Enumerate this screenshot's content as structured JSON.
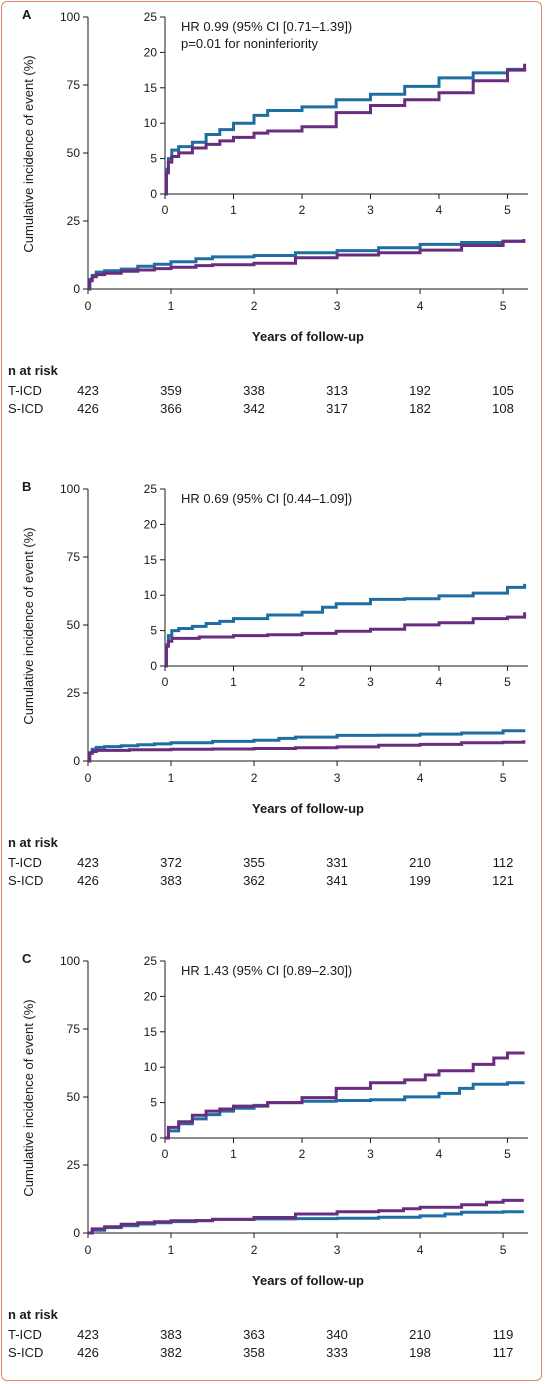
{
  "colors": {
    "tice": "#1f6ea3",
    "sicd": "#6a2c7e",
    "axis": "#1a1a1a",
    "frame": "#e8836a"
  },
  "chart_data": [
    {
      "panel": "A",
      "type": "line",
      "xlabel": "Years of follow-up",
      "ylabel": "Cumulative incidence of event (%)",
      "xlim": [
        0,
        5.3
      ],
      "ylim": [
        0,
        100
      ],
      "xticks": [
        0,
        1,
        2,
        3,
        4,
        5
      ],
      "yticks": [
        0,
        25,
        50,
        75,
        100
      ],
      "inset": {
        "xlim": [
          0,
          5.3
        ],
        "ylim": [
          0,
          25
        ],
        "yticks": [
          0,
          5,
          10,
          15,
          20,
          25
        ],
        "xticks": [
          0,
          1,
          2,
          3,
          4,
          5
        ]
      },
      "annotation": [
        "HR 0.99 (95% CI [0.71–1.39])",
        "p=0.01 for noninferiority"
      ],
      "series": [
        {
          "name": "T-ICD",
          "color": "#1f6ea3",
          "x": [
            0,
            0.02,
            0.05,
            0.1,
            0.2,
            0.4,
            0.6,
            0.8,
            1.0,
            1.3,
            1.5,
            2.0,
            2.5,
            3.0,
            3.5,
            4.0,
            4.5,
            5.0,
            5.25
          ],
          "y": [
            0,
            3.5,
            5.0,
            6.2,
            6.7,
            7.3,
            8.4,
            9.1,
            10.0,
            11.1,
            11.8,
            12.3,
            13.3,
            14.1,
            15.2,
            16.4,
            17.1,
            17.6,
            17.8
          ]
        },
        {
          "name": "S-ICD",
          "color": "#6a2c7e",
          "x": [
            0,
            0.02,
            0.05,
            0.1,
            0.2,
            0.4,
            0.6,
            0.8,
            1.0,
            1.3,
            1.5,
            2.0,
            2.5,
            3.0,
            3.5,
            4.0,
            4.5,
            5.0,
            5.25
          ],
          "y": [
            0,
            3.0,
            4.5,
            5.3,
            5.8,
            6.5,
            7.0,
            7.5,
            8.0,
            8.6,
            8.9,
            9.5,
            11.5,
            12.5,
            13.3,
            14.3,
            16.0,
            17.5,
            18.4
          ]
        }
      ],
      "risk": {
        "title": "n at risk",
        "rows": [
          {
            "label": "T-ICD",
            "values": [
              "423",
              "359",
              "338",
              "313",
              "192",
              "105"
            ]
          },
          {
            "label": "S-ICD",
            "values": [
              "426",
              "366",
              "342",
              "317",
              "182",
              "108"
            ]
          }
        ]
      }
    },
    {
      "panel": "B",
      "type": "line",
      "xlabel": "Years of follow-up",
      "ylabel": "Cumulative incidence of event (%)",
      "xlim": [
        0,
        5.3
      ],
      "ylim": [
        0,
        100
      ],
      "xticks": [
        0,
        1,
        2,
        3,
        4,
        5
      ],
      "yticks": [
        0,
        25,
        50,
        75,
        100
      ],
      "inset": {
        "xlim": [
          0,
          5.3
        ],
        "ylim": [
          0,
          25
        ],
        "yticks": [
          0,
          5,
          10,
          15,
          20,
          25
        ],
        "xticks": [
          0,
          1,
          2,
          3,
          4,
          5
        ]
      },
      "annotation": [
        "HR 0.69 (95% CI [0.44–1.09])"
      ],
      "series": [
        {
          "name": "T-ICD",
          "color": "#1f6ea3",
          "x": [
            0,
            0.02,
            0.05,
            0.1,
            0.2,
            0.4,
            0.6,
            0.8,
            1.0,
            1.5,
            2.0,
            2.3,
            2.5,
            3.0,
            3.5,
            4.0,
            4.5,
            5.0,
            5.25
          ],
          "y": [
            0,
            3.0,
            4.3,
            5.0,
            5.3,
            5.6,
            6.0,
            6.3,
            6.7,
            7.2,
            7.6,
            8.3,
            8.8,
            9.4,
            9.5,
            9.9,
            10.3,
            11.1,
            11.6
          ]
        },
        {
          "name": "S-ICD",
          "color": "#6a2c7e",
          "x": [
            0,
            0.02,
            0.05,
            0.1,
            0.5,
            1.0,
            1.5,
            2.0,
            2.5,
            3.0,
            3.5,
            4.0,
            4.5,
            5.0,
            5.25
          ],
          "y": [
            0,
            2.8,
            3.5,
            3.9,
            4.1,
            4.3,
            4.4,
            4.6,
            4.9,
            5.2,
            5.8,
            6.1,
            6.7,
            6.9,
            7.6
          ]
        }
      ],
      "risk": {
        "title": "n at risk",
        "rows": [
          {
            "label": "T-ICD",
            "values": [
              "423",
              "372",
              "355",
              "331",
              "210",
              "112"
            ]
          },
          {
            "label": "S-ICD",
            "values": [
              "426",
              "383",
              "362",
              "341",
              "199",
              "121"
            ]
          }
        ]
      }
    },
    {
      "panel": "C",
      "type": "line",
      "xlabel": "Years of follow-up",
      "ylabel": "Cumulative incidence of event (%)",
      "xlim": [
        0,
        5.3
      ],
      "ylim": [
        0,
        100
      ],
      "xticks": [
        0,
        1,
        2,
        3,
        4,
        5
      ],
      "yticks": [
        0,
        25,
        50,
        75,
        100
      ],
      "inset": {
        "xlim": [
          0,
          5.3
        ],
        "ylim": [
          0,
          25
        ],
        "yticks": [
          0,
          5,
          10,
          15,
          20,
          25
        ],
        "xticks": [
          0,
          1,
          2,
          3,
          4,
          5
        ]
      },
      "annotation": [
        "HR 1.43 (95% CI [0.89–2.30])"
      ],
      "series": [
        {
          "name": "T-ICD",
          "color": "#1f6ea3",
          "x": [
            0,
            0.05,
            0.2,
            0.4,
            0.6,
            0.8,
            1.0,
            1.3,
            1.5,
            2.0,
            2.5,
            3.0,
            3.5,
            4.0,
            4.3,
            4.5,
            5.0,
            5.25
          ],
          "y": [
            0,
            1.0,
            2.0,
            2.7,
            3.3,
            3.8,
            4.2,
            4.6,
            5.0,
            5.2,
            5.3,
            5.4,
            5.8,
            6.3,
            7.0,
            7.6,
            7.8,
            7.8
          ]
        },
        {
          "name": "S-ICD",
          "color": "#6a2c7e",
          "x": [
            0,
            0.05,
            0.2,
            0.4,
            0.6,
            0.8,
            1.0,
            1.5,
            2.0,
            2.5,
            3.0,
            3.5,
            3.8,
            4.0,
            4.5,
            4.8,
            5.0,
            5.25
          ],
          "y": [
            0,
            1.5,
            2.3,
            3.2,
            3.8,
            4.1,
            4.5,
            5.0,
            5.7,
            7.0,
            7.8,
            8.2,
            8.9,
            9.5,
            10.4,
            11.3,
            12.0,
            12.0
          ]
        }
      ],
      "risk": {
        "title": "n at risk",
        "rows": [
          {
            "label": "T-ICD",
            "values": [
              "423",
              "383",
              "363",
              "340",
              "210",
              "119"
            ]
          },
          {
            "label": "S-ICD",
            "values": [
              "426",
              "382",
              "358",
              "333",
              "198",
              "117"
            ]
          }
        ]
      }
    }
  ]
}
